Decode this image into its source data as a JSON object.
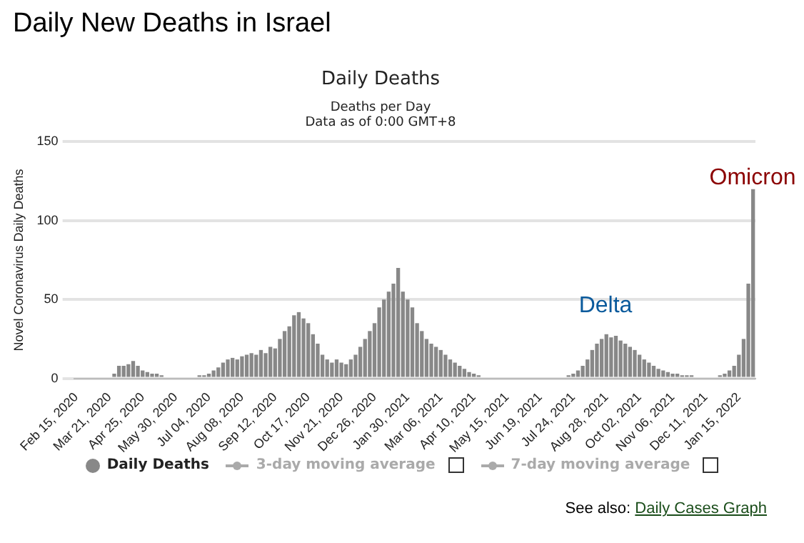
{
  "chart_data": {
    "type": "bar",
    "title": "Daily New Deaths in Israel",
    "subtitle": "Daily Deaths",
    "ylabel": "Novel Coronavirus Daily Deaths",
    "categories": [
      "Feb 15, 2020",
      null,
      null,
      null,
      null,
      null,
      null,
      "Mar 21, 2020",
      null,
      null,
      null,
      null,
      null,
      null,
      "Apr 25, 2020",
      null,
      null,
      null,
      null,
      null,
      null,
      "May 30, 2020",
      null,
      null,
      null,
      null,
      null,
      null,
      "Jul 04, 2020",
      null,
      null,
      null,
      null,
      null,
      null,
      "Aug 08, 2020",
      null,
      null,
      null,
      null,
      null,
      null,
      "Sep 12, 2020",
      null,
      null,
      null,
      null,
      null,
      null,
      "Oct 17, 2020",
      null,
      null,
      null,
      null,
      null,
      null,
      "Nov 21, 2020",
      null,
      null,
      null,
      null,
      null,
      null,
      "Dec 26, 2020",
      null,
      null,
      null,
      null,
      null,
      null,
      "Jan 30, 2021",
      null,
      null,
      null,
      null,
      null,
      null,
      "Mar 06, 2021",
      null,
      null,
      null,
      null,
      null,
      null,
      "Apr 10, 2021",
      null,
      null,
      null,
      null,
      null,
      null,
      "May 15, 2021",
      null,
      null,
      null,
      null,
      null,
      null,
      "Jun 19, 2021",
      null,
      null,
      null,
      null,
      null,
      null,
      "Jul 24, 2021",
      null,
      null,
      null,
      null,
      null,
      null,
      "Aug 28, 2021",
      null,
      null,
      null,
      null,
      null,
      null,
      "Oct 02, 2021",
      null,
      null,
      null,
      null,
      null,
      null,
      "Nov 06, 2021",
      null,
      null,
      null,
      null,
      null,
      null,
      "Dec 11, 2021",
      null,
      null,
      null,
      null,
      null,
      null,
      "Jan 15, 2022",
      null,
      null,
      null
    ],
    "series": [
      {
        "name": "Daily Deaths",
        "color": "#888888",
        "values": [
          0,
          0,
          0,
          0,
          0,
          0,
          0,
          1,
          3,
          8,
          8,
          9,
          11,
          8,
          5,
          4,
          3,
          3,
          2,
          1,
          1,
          1,
          0,
          1,
          0,
          1,
          2,
          2,
          3,
          5,
          7,
          10,
          12,
          13,
          12,
          14,
          15,
          16,
          15,
          18,
          16,
          20,
          19,
          25,
          30,
          33,
          40,
          42,
          38,
          35,
          28,
          22,
          15,
          12,
          10,
          12,
          10,
          9,
          12,
          15,
          20,
          25,
          30,
          35,
          45,
          50,
          55,
          60,
          70,
          55,
          50,
          45,
          35,
          30,
          25,
          22,
          20,
          18,
          15,
          12,
          10,
          8,
          6,
          4,
          3,
          2,
          1,
          1,
          1,
          0,
          1,
          0,
          0,
          0,
          0,
          0,
          0,
          0,
          0,
          0,
          1,
          0,
          1,
          1,
          2,
          3,
          5,
          8,
          12,
          18,
          22,
          25,
          28,
          26,
          27,
          24,
          22,
          20,
          18,
          15,
          12,
          10,
          8,
          6,
          5,
          4,
          3,
          3,
          2,
          2,
          2,
          1,
          1,
          1,
          1,
          1,
          2,
          3,
          5,
          8,
          15,
          25,
          60,
          120
        ]
      },
      {
        "name": "3-day moving average",
        "type": "line",
        "color": "#aaaaaa",
        "values": [
          null,
          null,
          null,
          null,
          null,
          null,
          null,
          null,
          null,
          null,
          null,
          null,
          null,
          null,
          null,
          null,
          null,
          null,
          null,
          null,
          null,
          null,
          null,
          null,
          null,
          null,
          null,
          null,
          null,
          null,
          null,
          null,
          null,
          null,
          null,
          null,
          null,
          null,
          null,
          null,
          null,
          null,
          null,
          null,
          null,
          null,
          null,
          null,
          null,
          null,
          null,
          null,
          null,
          null,
          null,
          null,
          null,
          null,
          null,
          null,
          null,
          null,
          null,
          null,
          null,
          null,
          null,
          null,
          null,
          null,
          null,
          null,
          null,
          null,
          null,
          null,
          null,
          null,
          null,
          null,
          null,
          null,
          null,
          null,
          null,
          null,
          null,
          null,
          null,
          null,
          null,
          null,
          null,
          null,
          null,
          null,
          null,
          null,
          null,
          null,
          null,
          null,
          null,
          null,
          null,
          null,
          null,
          null,
          null,
          null,
          null,
          null,
          null,
          null,
          null,
          null,
          null,
          null,
          null,
          null,
          null,
          null,
          null,
          null,
          null,
          null,
          null,
          null,
          null,
          null,
          null,
          null,
          null,
          null,
          null,
          null,
          null,
          null,
          null,
          null,
          null,
          null,
          null,
          null
        ]
      },
      {
        "name": "7-day moving average",
        "type": "line",
        "color": "#aaaaaa",
        "values": [
          null,
          null,
          null,
          null,
          null,
          null,
          null,
          null,
          null,
          null,
          null,
          null,
          null,
          null,
          null,
          null,
          null,
          null,
          null,
          null,
          null,
          null,
          null,
          null,
          null,
          null,
          null,
          null,
          null,
          null,
          null,
          null,
          null,
          null,
          null,
          null,
          null,
          null,
          null,
          null,
          null,
          null,
          null,
          null,
          null,
          null,
          null,
          null,
          null,
          null,
          null,
          null,
          null,
          null,
          null,
          null,
          null,
          null,
          null,
          null,
          null,
          null,
          null,
          null,
          null,
          null,
          null,
          null,
          null,
          null,
          null,
          null,
          null,
          null,
          null,
          null,
          null,
          null,
          null,
          null,
          null,
          null,
          null,
          null,
          null,
          null,
          null,
          null,
          null,
          null,
          null,
          null,
          null,
          null,
          null,
          null,
          null,
          null,
          null,
          null,
          null,
          null,
          null,
          null,
          null,
          null,
          null,
          null,
          null,
          null,
          null,
          null,
          null,
          null,
          null,
          null,
          null,
          null,
          null,
          null,
          null,
          null,
          null,
          null,
          null,
          null,
          null,
          null,
          null,
          null,
          null,
          null,
          null,
          null,
          null,
          null,
          null,
          null,
          null,
          null,
          null,
          null,
          null,
          null
        ]
      }
    ],
    "ylim": [
      0,
      150
    ],
    "yticks": [
      0,
      50,
      100,
      150
    ],
    "grid": "y",
    "legend": "bottom",
    "annotations": [
      "Deaths per Day",
      "Data as of 0:00 GMT+8",
      "Delta",
      "Omicron",
      "See also:",
      "Daily Cases Graph"
    ]
  }
}
